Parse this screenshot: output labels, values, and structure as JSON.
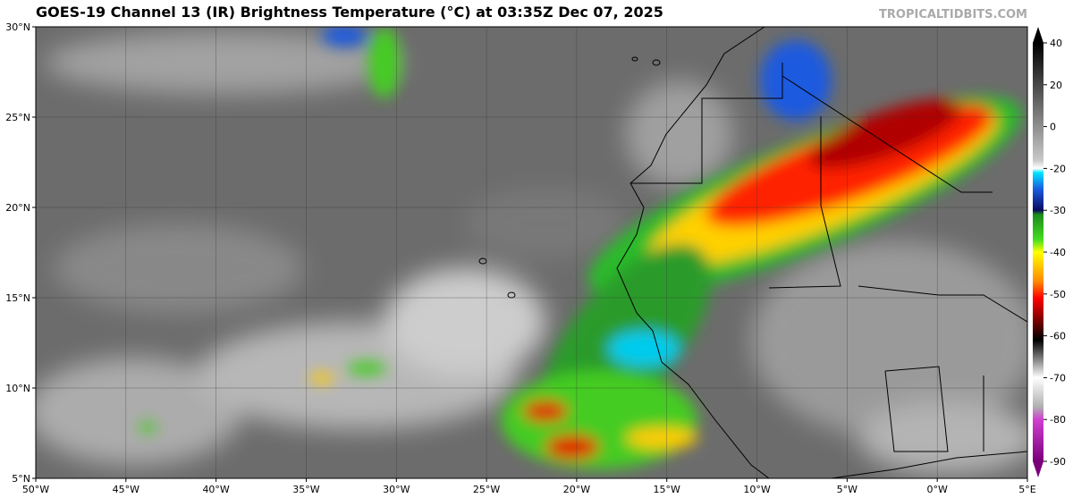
{
  "title": "GOES-19 Channel 13 (IR) Brightness Temperature (°C) at 03:35Z Dec 07, 2025",
  "credit": "TROPICALTIDBITS.COM",
  "map": {
    "xlim": [
      -50,
      5
    ],
    "ylim": [
      5,
      30
    ],
    "xticks": [
      {
        "value": -50,
        "label": "50°W"
      },
      {
        "value": -45,
        "label": "45°W"
      },
      {
        "value": -40,
        "label": "40°W"
      },
      {
        "value": -35,
        "label": "35°W"
      },
      {
        "value": -30,
        "label": "30°W"
      },
      {
        "value": -25,
        "label": "25°W"
      },
      {
        "value": -20,
        "label": "20°W"
      },
      {
        "value": -15,
        "label": "15°W"
      },
      {
        "value": -10,
        "label": "10°W"
      },
      {
        "value": -5,
        "label": "5°W"
      },
      {
        "value": 0,
        "label": "0°W"
      },
      {
        "value": 5,
        "label": "5°E"
      }
    ],
    "yticks": [
      {
        "value": 5,
        "label": "5°N"
      },
      {
        "value": 10,
        "label": "10°N"
      },
      {
        "value": 15,
        "label": "15°N"
      },
      {
        "value": 20,
        "label": "20°N"
      },
      {
        "value": 25,
        "label": "25°N"
      },
      {
        "value": 30,
        "label": "30°N"
      }
    ]
  },
  "colorbar": {
    "ticks": [
      40,
      20,
      0,
      -20,
      -30,
      -40,
      -50,
      -60,
      -70,
      -80,
      -90
    ]
  }
}
